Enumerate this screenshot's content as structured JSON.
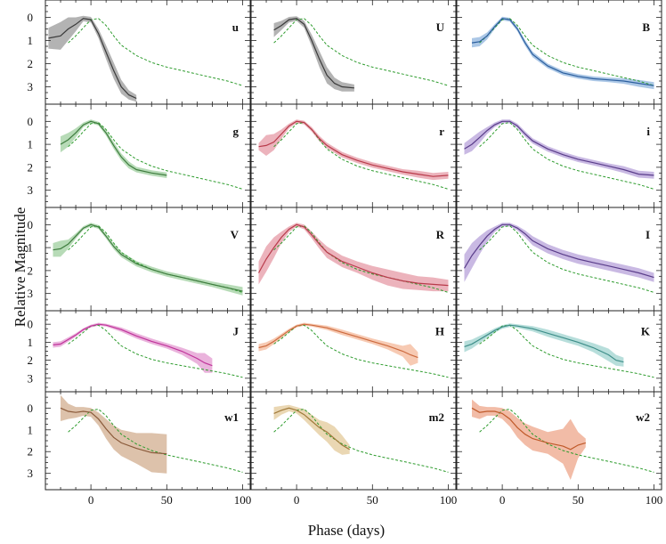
{
  "figure": {
    "ylabel": "Relative Magnitude",
    "xlabel": "Phase (days)"
  },
  "chart_data": {
    "type": "line",
    "layout": "5x3 grid of panels, shared axes",
    "x_range": [
      -30,
      105
    ],
    "y_range": [
      -0.75,
      3.75
    ],
    "y_inverted": true,
    "x_ticks": [
      0,
      50,
      100
    ],
    "y_ticks": [
      0,
      1,
      2,
      3
    ],
    "template_series": {
      "name": "template (dashed green)",
      "color": "#2e9c2e",
      "x": [
        -15,
        -10,
        -5,
        0,
        5,
        10,
        15,
        20,
        30,
        40,
        50,
        60,
        70,
        80,
        90,
        100
      ],
      "y": [
        1.1,
        0.8,
        0.45,
        0.1,
        0.05,
        0.35,
        0.8,
        1.2,
        1.65,
        1.95,
        2.15,
        2.3,
        2.45,
        2.6,
        2.75,
        2.95
      ]
    },
    "panels": [
      {
        "band": "u",
        "color": "#3a3a3a",
        "fill": "#9a9a9a",
        "x": [
          -28,
          -20,
          -15,
          -10,
          -5,
          0,
          5,
          10,
          15,
          20,
          25,
          30
        ],
        "y": [
          0.9,
          0.8,
          0.5,
          0.3,
          0.05,
          0.1,
          0.7,
          1.5,
          2.3,
          3.0,
          3.35,
          3.5
        ],
        "err": [
          0.45,
          0.6,
          0.5,
          0.3,
          0.12,
          0.12,
          0.2,
          0.3,
          0.35,
          0.3,
          0.2,
          0.15
        ]
      },
      {
        "band": "U",
        "color": "#3a3a3a",
        "fill": "#9a9a9a",
        "x": [
          -15,
          -10,
          -5,
          0,
          5,
          10,
          15,
          20,
          25,
          30,
          38
        ],
        "y": [
          0.55,
          0.35,
          0.1,
          0.05,
          0.3,
          1.0,
          1.8,
          2.5,
          2.85,
          3.0,
          3.05
        ],
        "err": [
          0.3,
          0.2,
          0.12,
          0.1,
          0.15,
          0.25,
          0.35,
          0.35,
          0.25,
          0.2,
          0.15
        ]
      },
      {
        "band": "B",
        "color": "#2c5f9e",
        "fill": "#8fb4de",
        "x": [
          -20,
          -15,
          -10,
          -5,
          0,
          5,
          10,
          15,
          20,
          30,
          40,
          50,
          60,
          70,
          80,
          90,
          100
        ],
        "y": [
          1.1,
          1.05,
          0.8,
          0.4,
          0.05,
          0.1,
          0.5,
          1.1,
          1.6,
          2.1,
          2.4,
          2.55,
          2.65,
          2.7,
          2.75,
          2.85,
          2.95
        ],
        "err": [
          0.2,
          0.2,
          0.15,
          0.1,
          0.08,
          0.08,
          0.1,
          0.12,
          0.12,
          0.1,
          0.1,
          0.1,
          0.1,
          0.1,
          0.12,
          0.15,
          0.15
        ]
      },
      {
        "band": "g",
        "color": "#3f7d3f",
        "fill": "#9fcf9f",
        "x": [
          -20,
          -15,
          -10,
          -5,
          0,
          5,
          10,
          15,
          20,
          25,
          30,
          40,
          50
        ],
        "y": [
          1.0,
          0.8,
          0.5,
          0.15,
          0.0,
          0.1,
          0.5,
          1.05,
          1.55,
          1.9,
          2.1,
          2.25,
          2.35
        ],
        "err": [
          0.35,
          0.3,
          0.2,
          0.1,
          0.08,
          0.08,
          0.12,
          0.15,
          0.15,
          0.15,
          0.12,
          0.12,
          0.12
        ]
      },
      {
        "band": "r",
        "color": "#b83a4a",
        "fill": "#e69aa5",
        "x": [
          -25,
          -20,
          -15,
          -10,
          -5,
          0,
          5,
          10,
          15,
          20,
          30,
          40,
          50,
          60,
          70,
          80,
          90,
          100
        ],
        "y": [
          1.1,
          1.05,
          0.9,
          0.55,
          0.2,
          0.0,
          0.05,
          0.35,
          0.75,
          1.05,
          1.45,
          1.7,
          1.9,
          2.05,
          2.2,
          2.3,
          2.4,
          2.35
        ],
        "err": [
          0.15,
          0.45,
          0.35,
          0.2,
          0.1,
          0.08,
          0.08,
          0.1,
          0.12,
          0.12,
          0.12,
          0.12,
          0.12,
          0.12,
          0.12,
          0.15,
          0.15,
          0.15
        ]
      },
      {
        "band": "i",
        "color": "#5a3d8a",
        "fill": "#b7a1da",
        "x": [
          -25,
          -20,
          -15,
          -10,
          -5,
          0,
          5,
          10,
          15,
          20,
          30,
          40,
          50,
          60,
          70,
          80,
          90,
          100
        ],
        "y": [
          1.2,
          1.0,
          0.7,
          0.4,
          0.15,
          0.0,
          0.0,
          0.2,
          0.55,
          0.85,
          1.2,
          1.45,
          1.65,
          1.8,
          1.95,
          2.1,
          2.3,
          2.35
        ],
        "err": [
          0.25,
          0.3,
          0.25,
          0.15,
          0.1,
          0.08,
          0.08,
          0.1,
          0.12,
          0.12,
          0.12,
          0.12,
          0.12,
          0.12,
          0.12,
          0.15,
          0.15,
          0.15
        ]
      },
      {
        "band": "V",
        "color": "#3f7d3f",
        "fill": "#9fcf9f",
        "x": [
          -25,
          -20,
          -15,
          -10,
          -5,
          0,
          5,
          10,
          15,
          20,
          30,
          40,
          50,
          60,
          70,
          80,
          90,
          100
        ],
        "y": [
          1.1,
          1.05,
          0.85,
          0.5,
          0.15,
          0.0,
          0.1,
          0.5,
          0.95,
          1.3,
          1.7,
          1.95,
          2.15,
          2.3,
          2.45,
          2.6,
          2.75,
          2.9
        ],
        "err": [
          0.3,
          0.35,
          0.2,
          0.12,
          0.08,
          0.08,
          0.08,
          0.1,
          0.12,
          0.12,
          0.12,
          0.12,
          0.12,
          0.12,
          0.12,
          0.12,
          0.15,
          0.18
        ]
      },
      {
        "band": "R",
        "color": "#b83a4a",
        "fill": "#e69aa5",
        "x": [
          -25,
          -20,
          -15,
          -10,
          -5,
          0,
          5,
          10,
          15,
          20,
          30,
          40,
          50,
          60,
          70,
          80,
          90,
          100
        ],
        "y": [
          2.1,
          1.5,
          1.0,
          0.55,
          0.2,
          0.0,
          0.1,
          0.45,
          0.85,
          1.2,
          1.6,
          1.85,
          2.1,
          2.3,
          2.45,
          2.55,
          2.6,
          2.65
        ],
        "err": [
          0.5,
          0.55,
          0.45,
          0.25,
          0.12,
          0.08,
          0.1,
          0.15,
          0.2,
          0.25,
          0.25,
          0.25,
          0.3,
          0.35,
          0.35,
          0.3,
          0.3,
          0.25
        ]
      },
      {
        "band": "I",
        "color": "#5a3d8a",
        "fill": "#b7a1da",
        "x": [
          -25,
          -20,
          -15,
          -10,
          -5,
          0,
          5,
          10,
          15,
          20,
          30,
          40,
          50,
          60,
          70,
          80,
          90,
          100
        ],
        "y": [
          1.9,
          1.35,
          0.9,
          0.5,
          0.2,
          0.0,
          0.0,
          0.15,
          0.4,
          0.7,
          1.05,
          1.3,
          1.5,
          1.65,
          1.8,
          1.95,
          2.1,
          2.3
        ],
        "err": [
          0.6,
          0.55,
          0.4,
          0.25,
          0.12,
          0.08,
          0.08,
          0.1,
          0.15,
          0.2,
          0.2,
          0.2,
          0.2,
          0.2,
          0.2,
          0.2,
          0.2,
          0.2
        ]
      },
      {
        "band": "J",
        "color": "#c0339a",
        "fill": "#e39ad0",
        "x": [
          -25,
          -20,
          -15,
          -10,
          -5,
          0,
          5,
          10,
          20,
          30,
          40,
          50,
          60,
          70,
          75,
          80
        ],
        "y": [
          1.15,
          1.1,
          0.85,
          0.6,
          0.3,
          0.1,
          0.0,
          0.05,
          0.3,
          0.65,
          0.95,
          1.2,
          1.5,
          1.9,
          2.15,
          2.3
        ],
        "err": [
          0.15,
          0.15,
          0.12,
          0.1,
          0.08,
          0.08,
          0.08,
          0.08,
          0.12,
          0.15,
          0.15,
          0.15,
          0.2,
          0.3,
          0.55,
          0.4
        ]
      },
      {
        "band": "H",
        "color": "#cc6a3e",
        "fill": "#f4b89a",
        "x": [
          -25,
          -20,
          -15,
          -10,
          -5,
          0,
          5,
          10,
          20,
          30,
          40,
          50,
          60,
          70,
          75,
          80
        ],
        "y": [
          1.3,
          1.2,
          0.95,
          0.65,
          0.35,
          0.1,
          0.0,
          0.05,
          0.2,
          0.45,
          0.7,
          0.95,
          1.2,
          1.5,
          1.7,
          1.85
        ],
        "err": [
          0.2,
          0.2,
          0.15,
          0.12,
          0.1,
          0.08,
          0.08,
          0.08,
          0.12,
          0.15,
          0.15,
          0.15,
          0.2,
          0.3,
          0.6,
          0.3
        ]
      },
      {
        "band": "K",
        "color": "#3f8f8a",
        "fill": "#9fd3cf",
        "x": [
          -25,
          -20,
          -15,
          -10,
          -5,
          0,
          5,
          10,
          20,
          30,
          40,
          50,
          60,
          70,
          75,
          80
        ],
        "y": [
          1.25,
          1.1,
          0.85,
          0.6,
          0.35,
          0.15,
          0.05,
          0.1,
          0.25,
          0.5,
          0.75,
          1.0,
          1.3,
          1.7,
          2.0,
          2.1
        ],
        "err": [
          0.3,
          0.25,
          0.2,
          0.15,
          0.12,
          0.1,
          0.1,
          0.1,
          0.15,
          0.2,
          0.2,
          0.2,
          0.25,
          0.35,
          0.3,
          0.25
        ]
      },
      {
        "band": "w1",
        "color": "#8a5a3a",
        "fill": "#d2ae8f",
        "x": [
          -20,
          -15,
          -10,
          -5,
          0,
          5,
          10,
          15,
          20,
          30,
          40,
          50
        ],
        "y": [
          0.0,
          0.15,
          0.2,
          0.15,
          0.2,
          0.5,
          0.95,
          1.35,
          1.6,
          1.85,
          2.05,
          2.1
        ],
        "err": [
          0.6,
          0.35,
          0.25,
          0.2,
          0.2,
          0.3,
          0.45,
          0.55,
          0.6,
          0.7,
          0.9,
          0.9
        ]
      },
      {
        "band": "m2",
        "color": "#a07a3a",
        "fill": "#e3c99a",
        "x": [
          -15,
          -10,
          -5,
          0,
          5,
          10,
          15,
          20,
          25,
          30,
          35
        ],
        "y": [
          0.25,
          0.1,
          0.0,
          0.1,
          0.3,
          0.6,
          0.9,
          1.1,
          1.4,
          1.7,
          1.9
        ],
        "err": [
          0.3,
          0.2,
          0.15,
          0.15,
          0.25,
          0.3,
          0.35,
          0.45,
          0.55,
          0.45,
          0.2
        ]
      },
      {
        "band": "w2",
        "color": "#c05a2a",
        "fill": "#eea58a",
        "x": [
          -20,
          -15,
          -10,
          -5,
          0,
          5,
          10,
          15,
          20,
          30,
          40,
          45,
          50,
          55
        ],
        "y": [
          0.0,
          0.2,
          0.15,
          0.15,
          0.25,
          0.5,
          0.9,
          1.2,
          1.4,
          1.6,
          1.75,
          1.9,
          1.7,
          1.6
        ],
        "err": [
          0.4,
          0.3,
          0.2,
          0.2,
          0.25,
          0.35,
          0.45,
          0.5,
          0.55,
          0.5,
          0.8,
          1.4,
          0.6,
          0.2
        ]
      }
    ]
  }
}
